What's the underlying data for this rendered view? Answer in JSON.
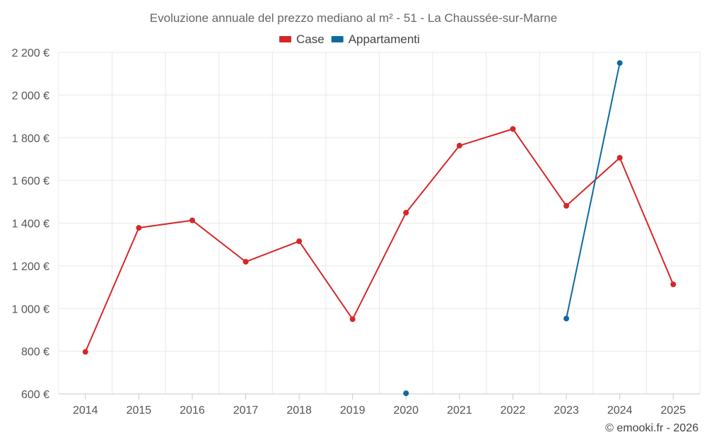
{
  "chart_data": {
    "type": "line",
    "title": "Evoluzione annuale del prezzo mediano al m² - 51 - La Chaussée-sur-Marne",
    "categories": [
      "2014",
      "2015",
      "2016",
      "2017",
      "2018",
      "2019",
      "2020",
      "2021",
      "2022",
      "2023",
      "2024",
      "2025"
    ],
    "series": [
      {
        "name": "Case",
        "color": "#d62728",
        "values": [
          797,
          1378,
          1413,
          1219,
          1315,
          950,
          1449,
          1763,
          1841,
          1481,
          1706,
          1113
        ]
      },
      {
        "name": "Appartamenti",
        "color": "#0e6aa0",
        "values": [
          null,
          null,
          null,
          null,
          null,
          null,
          603,
          null,
          null,
          953,
          2150,
          null
        ]
      }
    ],
    "ylim": [
      600,
      2200
    ],
    "yticks": [
      600,
      800,
      1000,
      1200,
      1400,
      1600,
      1800,
      2000,
      2200
    ],
    "ytick_labels": [
      "600 €",
      "800 €",
      "1 000 €",
      "1 200 €",
      "1 400 €",
      "1 600 €",
      "1 800 €",
      "2 000 €",
      "2 200 €"
    ],
    "xlabel": "",
    "ylabel": "",
    "grid": true,
    "legend_position": "top-center"
  },
  "credit": "© emooki.fr - 2026"
}
